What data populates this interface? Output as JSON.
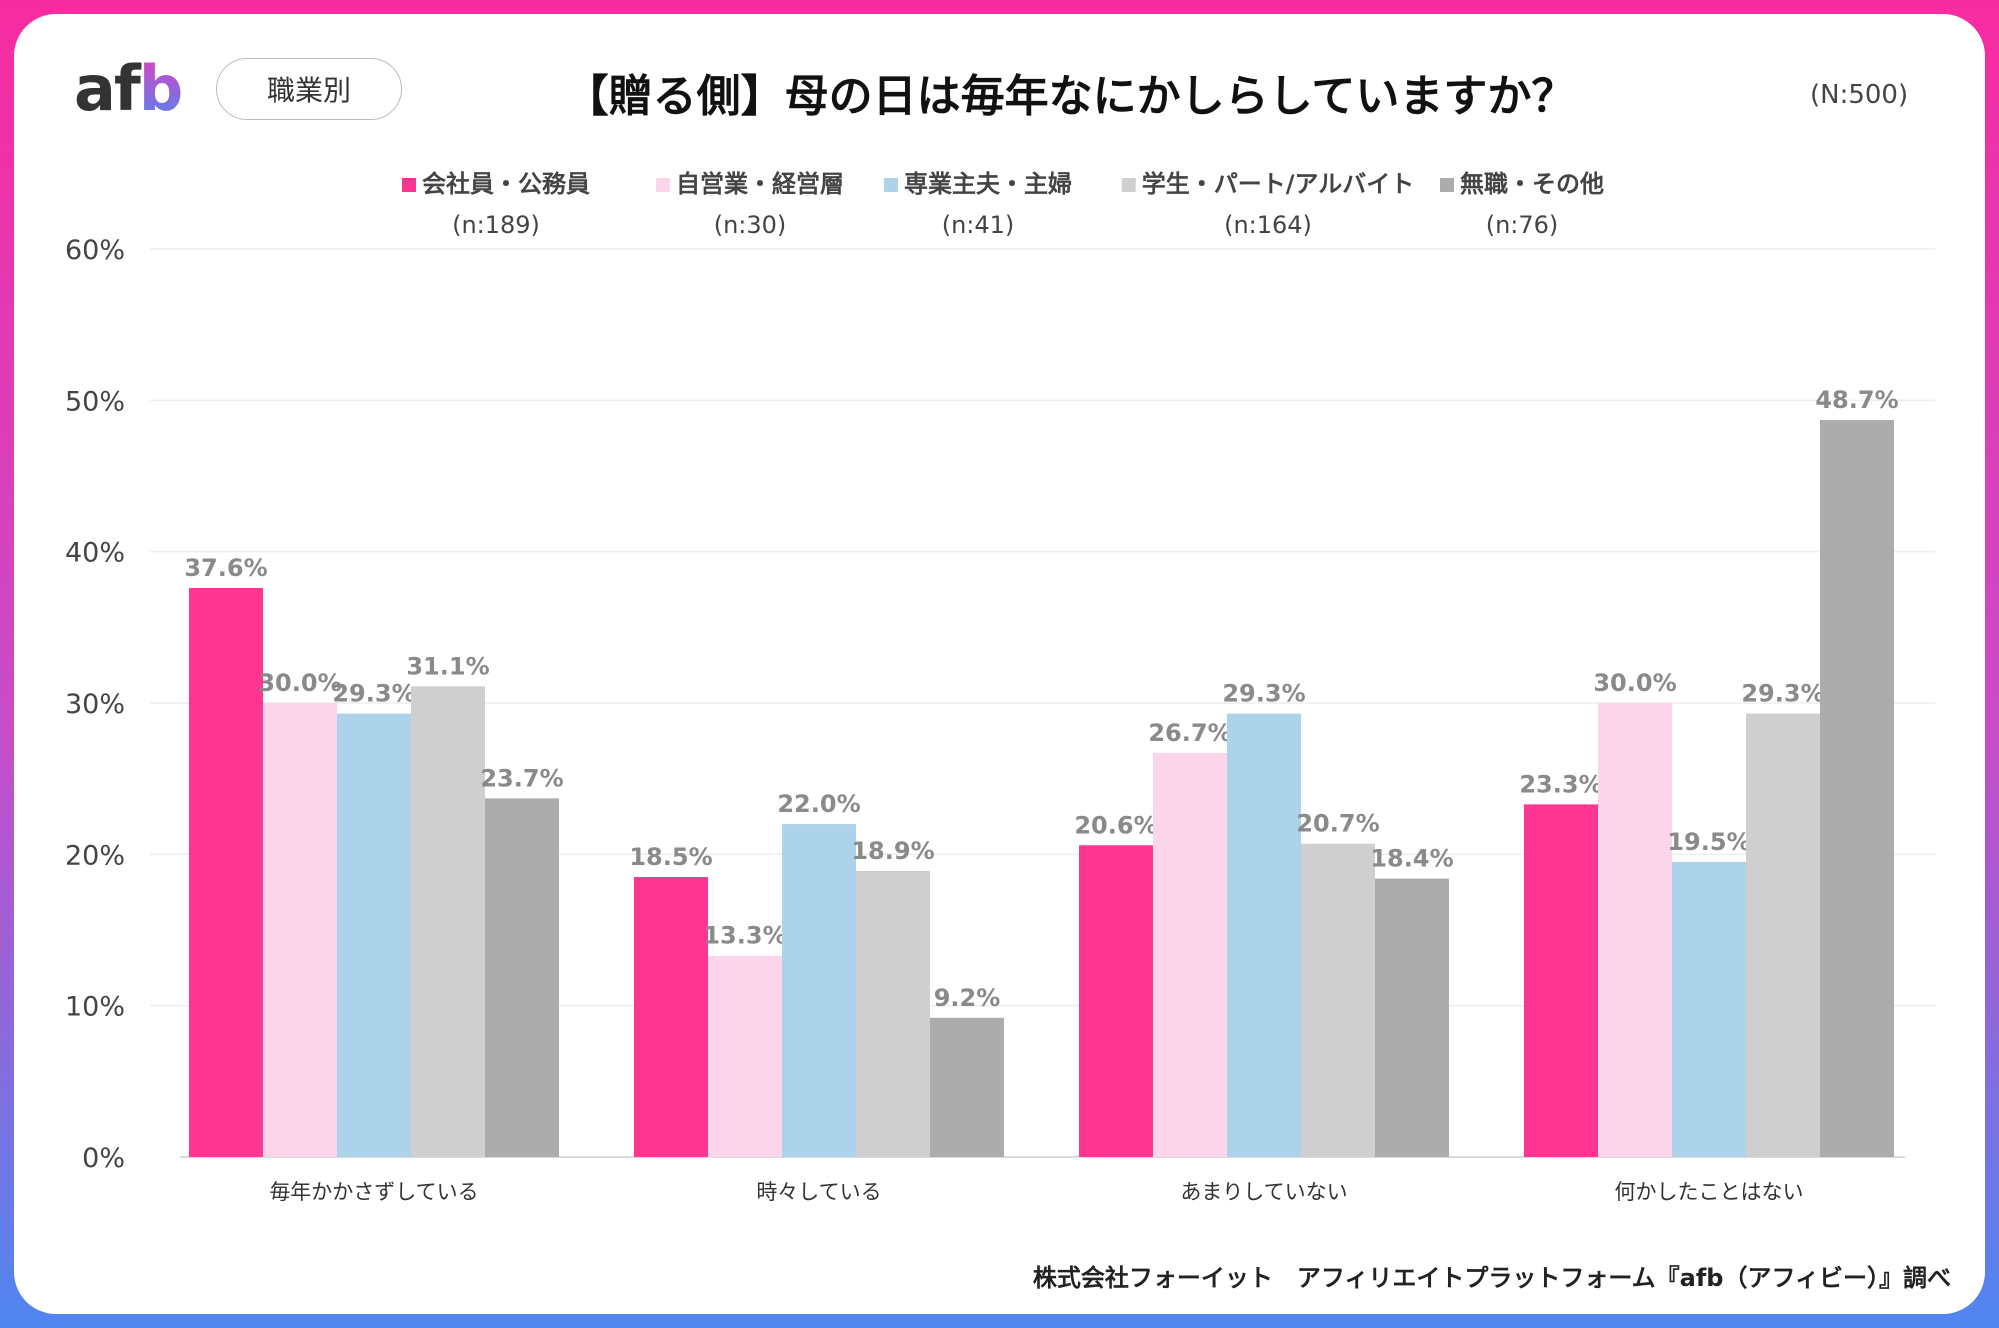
{
  "header": {
    "logo": "afb",
    "badge": "職業別",
    "title": "【贈る側】母の日は毎年なにかしらしていますか？",
    "total": "(N:500)"
  },
  "footer": "株式会社フォーイット　アフィリエイトプラットフォーム『afb（アフィビー）』調べ",
  "chart_data": {
    "type": "bar",
    "title": "【贈る側】母の日は毎年なにかしらしていますか？",
    "categories": [
      "毎年かかさずしている",
      "時々している",
      "あまりしていない",
      "何かしたことはない"
    ],
    "series": [
      {
        "name": "会社員・公務員",
        "n": "(n:189)",
        "color": "#ff3592",
        "values": [
          37.6,
          18.5,
          20.6,
          23.3
        ]
      },
      {
        "name": "自営業・経営層",
        "n": "(n:30)",
        "color": "#fdd5ea",
        "values": [
          30.0,
          13.3,
          26.7,
          30.0
        ]
      },
      {
        "name": "専業主夫・主婦",
        "n": "(n:41)",
        "color": "#acd3ea",
        "values": [
          29.3,
          22.0,
          29.3,
          19.5
        ]
      },
      {
        "name": "学生・パート/アルバイト",
        "n": "(n:164)",
        "color": "#d0cfcf",
        "values": [
          31.1,
          18.9,
          20.7,
          29.3
        ]
      },
      {
        "name": "無職・その他",
        "n": "(n:76)",
        "color": "#adacac",
        "values": [
          23.7,
          9.2,
          18.4,
          48.7
        ]
      }
    ],
    "yticks": [
      "0%",
      "10%",
      "20%",
      "30%",
      "40%",
      "50%",
      "60%"
    ],
    "ylim": [
      0,
      60
    ],
    "unit": "%",
    "grid": true,
    "legend_position": "top"
  }
}
